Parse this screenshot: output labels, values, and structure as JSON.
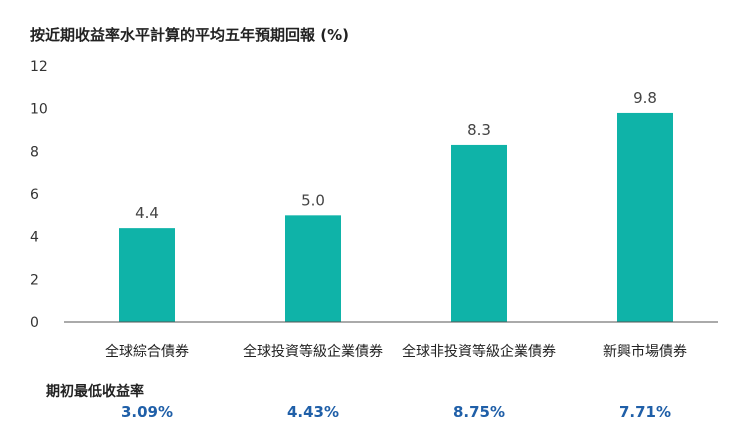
{
  "chart_data": {
    "type": "bar",
    "title": "按近期收益率水平計算的平均五年預期回報 (%)",
    "categories": [
      "全球綜合債券",
      "全球投資等級企業債券",
      "全球非投資等級企業債券",
      "新興市場債券"
    ],
    "values": [
      4.4,
      5.0,
      8.3,
      9.8
    ],
    "value_labels": [
      "4.4",
      "5.0",
      "8.3",
      "9.8"
    ],
    "ylim": [
      0,
      12
    ],
    "yticks": [
      0,
      2,
      4,
      6,
      8,
      10,
      12
    ],
    "ytick_labels": [
      "0",
      "2",
      "4",
      "6",
      "8",
      "10",
      "12"
    ],
    "xlabel": "",
    "ylabel": "",
    "bar_color": "#0fb3a8",
    "grid": false
  },
  "yield_row": {
    "title": "期初最低收益率",
    "values": [
      "3.09%",
      "4.43%",
      "8.75%",
      "7.71%"
    ],
    "color": "#1f5fa8"
  }
}
